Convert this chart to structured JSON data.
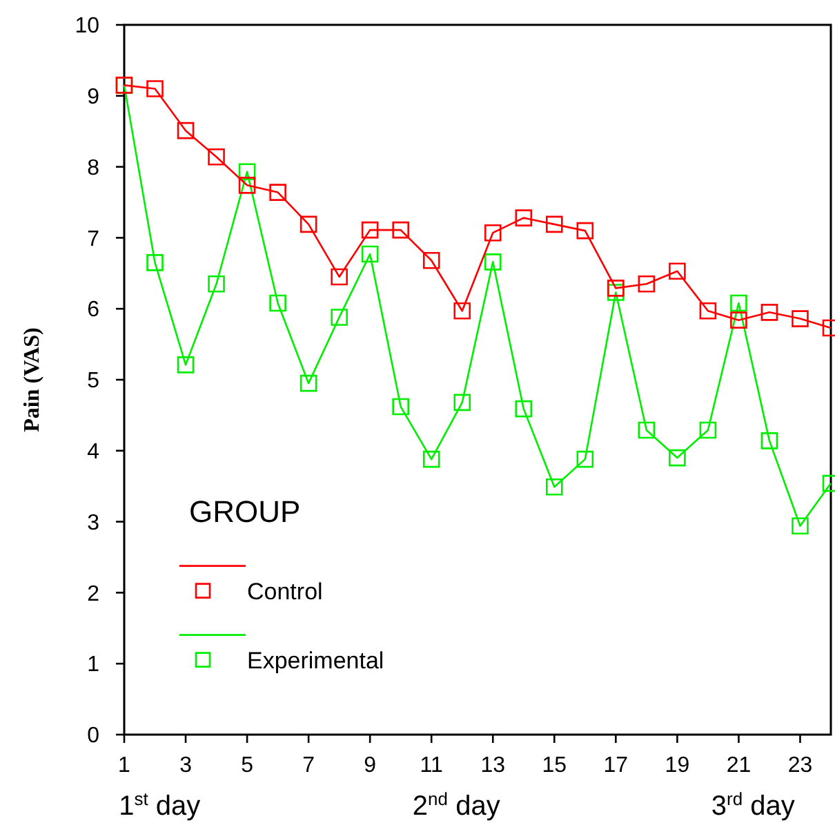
{
  "chart_data": {
    "type": "line",
    "ylabel": "Pain  (VAS)",
    "legend_title": "GROUP",
    "x": [
      1,
      2,
      3,
      4,
      5,
      6,
      7,
      8,
      9,
      10,
      11,
      12,
      13,
      14,
      15,
      16,
      17,
      18,
      19,
      20,
      21,
      22,
      23,
      24
    ],
    "series": [
      {
        "name": "Control",
        "color": "#ff0000",
        "values": [
          9.15,
          9.1,
          8.51,
          8.14,
          7.74,
          7.64,
          7.19,
          6.45,
          7.11,
          7.11,
          6.68,
          5.97,
          7.07,
          7.28,
          7.19,
          7.1,
          6.29,
          6.35,
          6.53,
          5.97,
          5.84,
          5.95,
          5.86,
          5.73
        ]
      },
      {
        "name": "Experimental",
        "color": "#00ee00",
        "values": [
          9.15,
          6.65,
          5.21,
          6.35,
          7.93,
          6.08,
          4.95,
          5.88,
          6.77,
          4.62,
          3.88,
          4.68,
          6.66,
          4.59,
          3.49,
          3.88,
          6.23,
          4.29,
          3.9,
          4.29,
          6.08,
          4.14,
          2.94,
          3.54
        ]
      }
    ],
    "xlim": [
      1,
      24
    ],
    "xticks": [
      1,
      3,
      5,
      7,
      9,
      11,
      13,
      15,
      17,
      19,
      21,
      23
    ],
    "ylim": [
      0,
      10
    ],
    "yticks": [
      0,
      1,
      2,
      3,
      4,
      5,
      6,
      7,
      8,
      9,
      10
    ],
    "marker": "square",
    "line_style": "solid",
    "grid": false,
    "legend": "bottom left",
    "annotations": [
      "1$^{st}$ day",
      "2$^{nd}$ day",
      "3$^{rd}$ day"
    ]
  }
}
